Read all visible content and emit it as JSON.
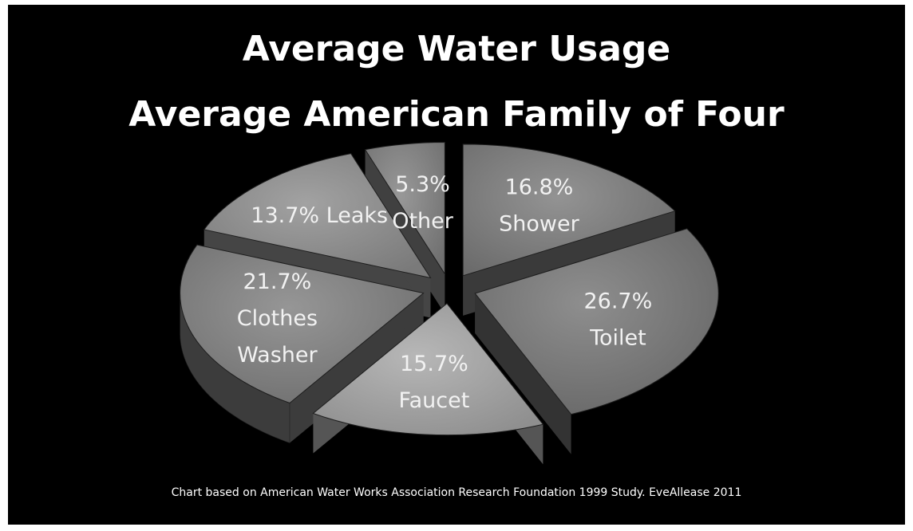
{
  "title_line1": "Average Water Usage",
  "title_line2": "Average American Family of Four",
  "source_note": "Chart based on American Water Works Association Research Foundation 1999 Study.  EveAllease 2011",
  "chart_data": {
    "type": "pie",
    "style": "3d-exploded",
    "background": "#000000",
    "legend": "none",
    "slices": [
      {
        "name": "Shower",
        "value": 16.8,
        "label_lines": [
          "16.8%",
          "Shower"
        ],
        "top_color": "#6b6b6b",
        "side_color": "#3a3a3a"
      },
      {
        "name": "Toilet",
        "value": 26.7,
        "label_lines": [
          "26.7%",
          "Toilet"
        ],
        "top_color": "#666666",
        "side_color": "#333333"
      },
      {
        "name": "Faucet",
        "value": 15.7,
        "label_lines": [
          "15.7%",
          "Faucet"
        ],
        "top_color": "#8f8f8f",
        "side_color": "#555555"
      },
      {
        "name": "Clothes Washer",
        "value": 21.7,
        "label_lines": [
          "21.7%",
          "Clothes",
          "Washer"
        ],
        "top_color": "#6e6e6e",
        "side_color": "#3c3c3c"
      },
      {
        "name": "Leaks",
        "value": 13.7,
        "label_lines": [
          "13.7% Leaks"
        ],
        "top_color": "#7a7a7a",
        "side_color": "#454545"
      },
      {
        "name": "Other",
        "value": 5.3,
        "label_lines": [
          "5.3%",
          "Other"
        ],
        "top_color": "#707070",
        "side_color": "#404040"
      }
    ]
  }
}
